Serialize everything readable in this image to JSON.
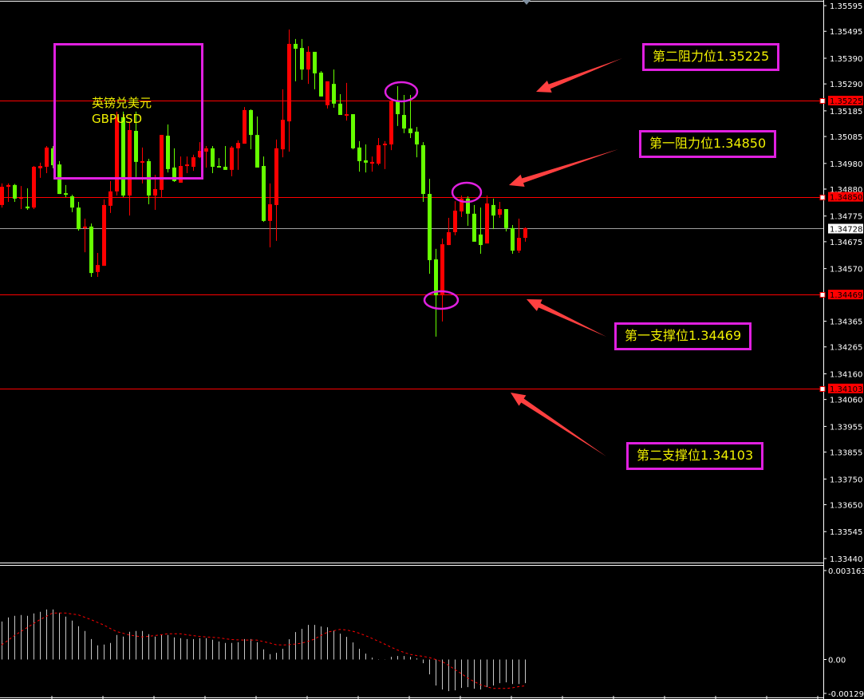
{
  "symbol": {
    "name_cn": "英镑兑美元",
    "name": "GBPUSD"
  },
  "colors": {
    "bull": "#ff0000",
    "bear": "#66ff00",
    "level_line": "#ff0000",
    "current_line": "#a0a0a0",
    "annotation_border": "#e020e0",
    "annotation_text": "#f0f000",
    "arrow": "#ff4040",
    "histogram": "#c8c8c8",
    "signal": "#ff0000",
    "axis_text": "#ffffff"
  },
  "annotations": [
    {
      "label": "第二阻力位1.35225",
      "price": 1.35225
    },
    {
      "label": "第一阻力位1.34850",
      "price": 1.3485
    },
    {
      "label": "第一支撑位1.34469",
      "price": 1.34469
    },
    {
      "label": "第二支撑位1.34103",
      "price": 1.34103
    }
  ],
  "level_labels": [
    "1.35225",
    "1.34850",
    "1.34469",
    "1.34103"
  ],
  "current_price_label": "1.34728",
  "chart_data": [
    {
      "type": "candlestick",
      "title": "",
      "ylim": [
        1.3344,
        1.35595
      ],
      "yticks": [
        "1.35595",
        "1.35495",
        "1.35390",
        "1.35290",
        "1.35185",
        "1.35085",
        "1.34980",
        "1.34880",
        "1.34775",
        "1.34675",
        "1.34570",
        "1.34365",
        "1.34265",
        "1.34160",
        "1.34060",
        "1.33955",
        "1.33855",
        "1.33750",
        "1.33650",
        "1.33545",
        "1.33440"
      ],
      "grid": false,
      "ohlc_order": [
        "open",
        "high",
        "low",
        "close"
      ],
      "candles": [
        [
          1.34818,
          1.34902,
          1.34808,
          1.34889
        ],
        [
          1.34889,
          1.34902,
          1.3483,
          1.34896
        ],
        [
          1.34896,
          1.349,
          1.3483,
          1.34843
        ],
        [
          1.34843,
          1.34892,
          1.34802,
          1.34849
        ],
        [
          1.34812,
          1.34883,
          1.34799,
          1.34805
        ],
        [
          1.34808,
          1.3497,
          1.34802,
          1.34967
        ],
        [
          1.34961,
          1.34983,
          1.34924,
          1.3497
        ],
        [
          1.34967,
          1.35048,
          1.34942,
          1.35042
        ],
        [
          1.35039,
          1.35048,
          1.34961,
          1.34973
        ],
        [
          1.34976,
          1.34989,
          1.34861,
          1.34861
        ],
        [
          1.34864,
          1.34896,
          1.34849,
          1.34858
        ],
        [
          1.34852,
          1.34858,
          1.3479,
          1.34808
        ],
        [
          1.34808,
          1.3483,
          1.34718,
          1.34724
        ],
        [
          1.34728,
          1.34765,
          1.34634,
          1.34734
        ],
        [
          1.34734,
          1.34746,
          1.34538,
          1.34553
        ],
        [
          1.34557,
          1.34631,
          1.34538,
          1.34584
        ],
        [
          1.34581,
          1.3484,
          1.34581,
          1.34818
        ],
        [
          1.34815,
          1.34911,
          1.34787,
          1.34871
        ],
        [
          1.34871,
          1.35182,
          1.34855,
          1.3516
        ],
        [
          1.3516,
          1.35182,
          1.34849,
          1.34855
        ],
        [
          1.34855,
          1.35141,
          1.34777,
          1.3511
        ],
        [
          1.35107,
          1.35182,
          1.34927,
          1.34986
        ],
        [
          1.34983,
          1.35042,
          1.34902,
          1.34989
        ],
        [
          1.34989,
          1.34998,
          1.34821,
          1.34855
        ],
        [
          1.34855,
          1.34936,
          1.34799,
          1.3488
        ],
        [
          1.34877,
          1.35091,
          1.34846,
          1.35091
        ],
        [
          1.35088,
          1.35132,
          1.34945,
          1.34958
        ],
        [
          1.34964,
          1.35039,
          1.34908,
          1.34911
        ],
        [
          1.34905,
          1.35007,
          1.34905,
          1.3497
        ],
        [
          1.3497,
          1.35007,
          1.34942,
          1.34976
        ],
        [
          1.34967,
          1.35014,
          1.34951,
          1.35004
        ],
        [
          1.35004,
          1.35063,
          1.35001,
          1.35029
        ],
        [
          1.35026,
          1.35048,
          1.34964,
          1.35039
        ],
        [
          1.35039,
          1.35048,
          1.34942,
          1.34967
        ],
        [
          1.3497,
          1.35001,
          1.34964,
          1.34964
        ],
        [
          1.34967,
          1.35048,
          1.34955,
          1.34955
        ],
        [
          1.34955,
          1.35048,
          1.3493,
          1.35042
        ],
        [
          1.35039,
          1.3507,
          1.34955,
          1.3506
        ],
        [
          1.35057,
          1.352,
          1.35057,
          1.35188
        ],
        [
          1.35188,
          1.35191,
          1.35035,
          1.35091
        ],
        [
          1.35091,
          1.35163,
          1.34964,
          1.34964
        ],
        [
          1.3497,
          1.35007,
          1.34752,
          1.34756
        ],
        [
          1.34756,
          1.34902,
          1.34653,
          1.34821
        ],
        [
          1.34818,
          1.35073,
          1.34678,
          1.35039
        ],
        [
          1.35035,
          1.35269,
          1.35004,
          1.3515
        ],
        [
          1.35144,
          1.35502,
          1.35026,
          1.35446
        ],
        [
          1.35446,
          1.35465,
          1.353,
          1.35427
        ],
        [
          1.3543,
          1.35465,
          1.35306,
          1.35346
        ],
        [
          1.35346,
          1.35437,
          1.3529,
          1.35415
        ],
        [
          1.35415,
          1.35415,
          1.35269,
          1.35331
        ],
        [
          1.35334,
          1.3534,
          1.35241,
          1.35241
        ],
        [
          1.35207,
          1.353,
          1.35194,
          1.353
        ],
        [
          1.3529,
          1.35346,
          1.35197,
          1.35213
        ],
        [
          1.35213,
          1.3525,
          1.35169,
          1.35169
        ],
        [
          1.35166,
          1.35294,
          1.35147,
          1.35172
        ],
        [
          1.35172,
          1.35172,
          1.35035,
          1.35039
        ],
        [
          1.35042,
          1.35067,
          1.34948,
          1.34989
        ],
        [
          1.34992,
          1.35054,
          1.34945,
          1.34983
        ],
        [
          1.34979,
          1.35007,
          1.34948,
          1.34986
        ],
        [
          1.34979,
          1.35079,
          1.34973,
          1.35051
        ],
        [
          1.35051,
          1.35067,
          1.34958,
          1.35057
        ],
        [
          1.35054,
          1.35222,
          1.35032,
          1.35222
        ],
        [
          1.35222,
          1.35281,
          1.35126,
          1.35172
        ],
        [
          1.35169,
          1.35247,
          1.35098,
          1.35116
        ],
        [
          1.35116,
          1.35247,
          1.35079,
          1.35098
        ],
        [
          1.35104,
          1.35122,
          1.35004,
          1.35054
        ],
        [
          1.35051,
          1.35063,
          1.3483,
          1.34861
        ],
        [
          1.34861,
          1.3492,
          1.3455,
          1.34603
        ],
        [
          1.34606,
          1.34647,
          1.34305,
          1.34466
        ],
        [
          1.34466,
          1.34687,
          1.34364,
          1.34665
        ],
        [
          1.34662,
          1.34768,
          1.34662,
          1.34712
        ],
        [
          1.34712,
          1.34833,
          1.347,
          1.34796
        ],
        [
          1.34793,
          1.34855,
          1.34771,
          1.34843
        ],
        [
          1.34843,
          1.34852,
          1.34737,
          1.34784
        ],
        [
          1.34784,
          1.34818,
          1.34675,
          1.34675
        ],
        [
          1.34703,
          1.34808,
          1.34628,
          1.34662
        ],
        [
          1.34668,
          1.34855,
          1.34668,
          1.34824
        ],
        [
          1.34818,
          1.34843,
          1.34724,
          1.34777
        ],
        [
          1.3478,
          1.3483,
          1.34768,
          1.34802
        ],
        [
          1.34802,
          1.34802,
          1.34715,
          1.34728
        ],
        [
          1.34728,
          1.3474,
          1.34628,
          1.3464
        ],
        [
          1.3464,
          1.34765,
          1.34631,
          1.3469
        ],
        [
          1.3469,
          1.34731,
          1.34675,
          1.34728
        ]
      ],
      "levels": [
        1.35225,
        1.3485,
        1.34469,
        1.34103
      ],
      "current_price": 1.34728
    },
    {
      "type": "bar",
      "title": "",
      "ylim": [
        -0.001291,
        0.003163
      ],
      "yticks": [
        "0.003163",
        "0.00",
        "-0.001291"
      ],
      "histogram": [
        0.001257,
        0.001389,
        0.001442,
        0.001468,
        0.001442,
        0.001521,
        0.001574,
        0.001653,
        0.001653,
        0.001547,
        0.001416,
        0.001284,
        0.001099,
        0.000941,
        0.000677,
        0.000467,
        0.000493,
        0.000546,
        0.000809,
        0.000757,
        0.000915,
        0.000941,
        0.000941,
        0.000836,
        0.000757,
        0.000809,
        0.000809,
        0.00073,
        0.000704,
        0.000677,
        0.000677,
        0.000704,
        0.000704,
        0.000651,
        0.000598,
        0.000546,
        0.000546,
        0.000572,
        0.000677,
        0.000677,
        0.000572,
        0.000335,
        0.000177,
        0.00022,
        0.000351,
        0.000668,
        0.000905,
        0.001011,
        0.001142,
        0.001142,
        0.00109,
        0.001063,
        0.000958,
        0.000852,
        0.000747,
        0.000562,
        0.000351,
        0.000193,
        6.2e-05,
        9e-06,
        5e-06,
        8.8e-05,
        0.000114,
        0.000114,
        8.8e-05,
        3.5e-05,
        -0.000123,
        -0.000492,
        -0.000861,
        -0.000993,
        -0.001046,
        -0.001019,
        -0.00094,
        -0.000914,
        -0.000967,
        -0.000993,
        -0.000914,
        -0.000861,
        -0.000782,
        -0.000756,
        -0.000809,
        -0.000809,
        -0.000782
      ],
      "signal": [
        0.000482,
        0.000633,
        0.000791,
        0.000923,
        0.001054,
        0.001186,
        0.001318,
        0.001423,
        0.001537,
        0.001537,
        0.001537,
        0.001503,
        0.001476,
        0.001397,
        0.001318,
        0.001228,
        0.001141,
        0.001028,
        0.000923,
        0.00087,
        0.000809,
        0.000778,
        0.000746,
        0.000764,
        0.000791,
        0.000817,
        0.000851,
        0.000851,
        0.000851,
        0.000817,
        0.000791,
        0.000764,
        0.000746,
        0.000733,
        0.00072,
        0.000685,
        0.000659,
        0.000648,
        0.000641,
        0.000641,
        0.000641,
        0.000593,
        0.000546,
        0.000488,
        0.00048,
        0.00049,
        0.000511,
        0.00054,
        0.000598,
        0.000672,
        0.000791,
        0.000896,
        0.000949,
        0.000994,
        0.000975,
        0.000936,
        0.00087,
        0.000791,
        0.000701,
        0.000606,
        0.000511,
        0.000409,
        0.000316,
        0.000237,
        0.000171,
        0.000132,
        0.000105,
        6.6e-05,
        0.0,
        -6.6e-05,
        -0.000185,
        -0.00033,
        -0.000461,
        -0.000606,
        -0.000725,
        -0.00083,
        -0.000896,
        -0.000957,
        -0.000957,
        -0.000957,
        -0.000936,
        -0.000896,
        -0.00087
      ]
    }
  ]
}
